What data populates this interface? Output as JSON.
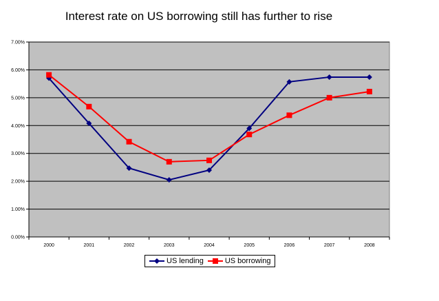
{
  "chart_data": {
    "type": "line",
    "title": "Interest rate on US borrowing still has further to rise",
    "xlabel": "",
    "ylabel": "",
    "categories": [
      "2000",
      "2001",
      "2002",
      "2003",
      "2004",
      "2005",
      "2006",
      "2007",
      "2008"
    ],
    "ylim": [
      0,
      7
    ],
    "yticks": [
      "0.00%",
      "1.00%",
      "2.00%",
      "3.00%",
      "4.00%",
      "5.00%",
      "6.00%",
      "7.00%"
    ],
    "grid": true,
    "legend_position": "bottom",
    "plot_background": "#C0C0C0",
    "series": [
      {
        "name": "US lending",
        "color": "#000080",
        "marker": "diamond",
        "values": [
          5.7,
          4.08,
          2.47,
          2.05,
          2.4,
          3.9,
          5.57,
          5.74,
          5.74
        ]
      },
      {
        "name": "US borrowing",
        "color": "#FF0000",
        "marker": "square",
        "values": [
          5.82,
          4.68,
          3.42,
          2.7,
          2.75,
          3.68,
          4.37,
          5.0,
          5.22
        ]
      }
    ]
  }
}
